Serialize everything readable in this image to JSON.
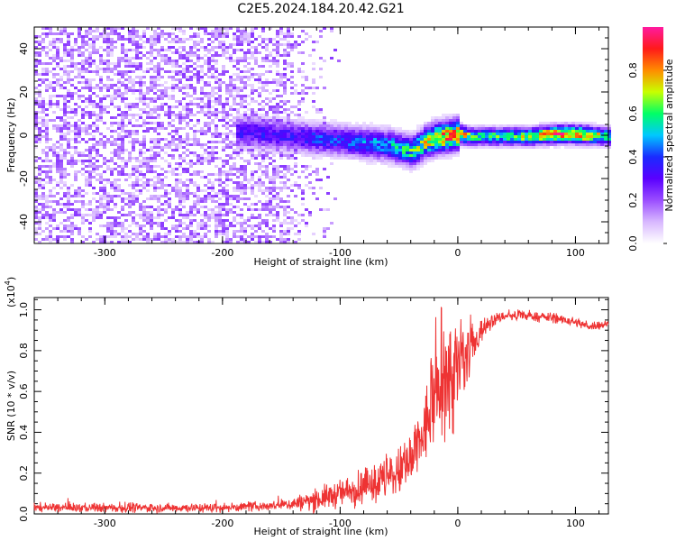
{
  "title": "C2E5.2024.184.20.42.G21",
  "chart_data": [
    {
      "type": "heatmap",
      "title": "C2E5.2024.184.20.42.G21",
      "xlabel": "Height of straight line (km)",
      "ylabel": "Frequency (Hz)",
      "xlim": [
        -360,
        128
      ],
      "ylim": [
        -50,
        50
      ],
      "x_ticks": [
        -300,
        -200,
        -100,
        0,
        100
      ],
      "x_tick_labels": [
        "-300",
        "-200",
        "-100",
        "0",
        "100"
      ],
      "y_ticks": [
        40,
        20,
        0,
        -20,
        -40
      ],
      "y_tick_labels": [
        "40",
        "20",
        "0",
        "-20",
        "-40"
      ],
      "grid": false,
      "colorbar": {
        "label": "Normalized spectral amplitude",
        "range": [
          0,
          1
        ],
        "ticks": [
          0.0,
          0.2,
          0.4,
          0.6,
          0.8
        ],
        "tick_labels": [
          "0.0",
          "0.2",
          "0.4",
          "0.6",
          "0.8"
        ],
        "colormap": [
          "#ffffff",
          "#d8b8ff",
          "#9a4dff",
          "#5a00ff",
          "#1a2bff",
          "#00c8ff",
          "#00ff66",
          "#c8ff00",
          "#ff8c00",
          "#ff1a1a",
          "#ff1aa0"
        ]
      },
      "signal_track": {
        "x": [
          -180,
          -160,
          -140,
          -120,
          -100,
          -80,
          -60,
          -40,
          -30,
          -20,
          -10,
          0,
          10,
          20,
          40,
          60,
          80,
          100,
          128
        ],
        "frequency": [
          2,
          1,
          0,
          -1,
          -2,
          -3,
          -4,
          -7,
          -3,
          -1,
          0,
          1,
          0,
          0,
          0,
          0,
          1,
          1,
          0
        ],
        "peak_amplitude": [
          0.35,
          0.35,
          0.35,
          0.4,
          0.4,
          0.45,
          0.5,
          0.6,
          0.7,
          0.8,
          0.85,
          0.9,
          0.6,
          0.6,
          0.6,
          0.7,
          0.9,
          0.9,
          0.6
        ]
      }
    },
    {
      "type": "line",
      "xlabel": "Height of straight line (km)",
      "ylabel": "SNR (10 * v/v)",
      "y_scale_label": "(x10",
      "y_scale_exponent": "4",
      "y_scale_suffix": ")",
      "xlim": [
        -360,
        128
      ],
      "ylim": [
        0,
        1.06
      ],
      "x_ticks": [
        -300,
        -200,
        -100,
        0,
        100
      ],
      "x_tick_labels": [
        "-300",
        "-200",
        "-100",
        "0",
        "100"
      ],
      "y_ticks": [
        0.0,
        0.2,
        0.4,
        0.6,
        0.8,
        1.0
      ],
      "y_tick_labels": [
        "0.0",
        "0.2",
        "0.4",
        "0.6",
        "0.8",
        "1.0"
      ],
      "grid": false,
      "color": "#ee3333",
      "series": [
        {
          "x": [
            -360,
            -300,
            -200,
            -160,
            -140,
            -120,
            -100,
            -80,
            -60,
            -40,
            -30,
            -20,
            -10,
            0,
            10,
            20,
            30,
            40,
            60,
            80,
            100,
            110,
            128
          ],
          "values": [
            0.03,
            0.03,
            0.03,
            0.04,
            0.05,
            0.07,
            0.1,
            0.13,
            0.17,
            0.24,
            0.38,
            0.55,
            0.65,
            0.7,
            0.78,
            0.9,
            0.95,
            0.97,
            0.97,
            0.96,
            0.94,
            0.92,
            0.93
          ],
          "noise": [
            0.02,
            0.02,
            0.02,
            0.02,
            0.03,
            0.05,
            0.06,
            0.08,
            0.1,
            0.12,
            0.16,
            0.2,
            0.25,
            0.28,
            0.12,
            0.05,
            0.03,
            0.02,
            0.02,
            0.02,
            0.02,
            0.02,
            0.02
          ]
        }
      ]
    }
  ]
}
